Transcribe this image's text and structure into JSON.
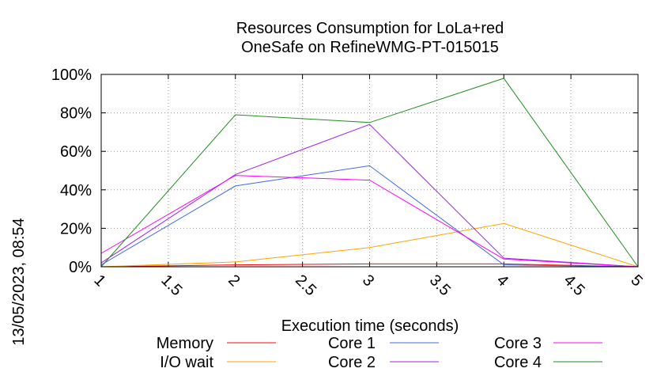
{
  "chart_data": {
    "type": "line",
    "title": "Resources Consumption for LoLa+red",
    "subtitle": "OneSafe on RefineWMG-PT-015015",
    "xlabel": "Execution time (seconds)",
    "ylabel": "",
    "xlim": [
      1,
      5
    ],
    "ylim": [
      0,
      100
    ],
    "x_ticks": [
      "1",
      "1.5",
      "2",
      "2.5",
      "3",
      "3.5",
      "4",
      "4.5",
      "5"
    ],
    "y_ticks": [
      "0%",
      "20%",
      "40%",
      "60%",
      "80%",
      "100%"
    ],
    "grid": true,
    "legend_position": "bottom",
    "side_label": "13/05/2023, 08:54",
    "series": [
      {
        "name": "Memory",
        "color": "#ff0000",
        "x": [
          1,
          2,
          3,
          4,
          5
        ],
        "y": [
          0,
          1,
          1.5,
          1.5,
          0
        ]
      },
      {
        "name": "I/O wait",
        "color": "#ffa500",
        "x": [
          1,
          2,
          3,
          4,
          5
        ],
        "y": [
          0,
          2.5,
          10,
          22.5,
          0
        ]
      },
      {
        "name": "Core 1",
        "color": "#4169e1",
        "x": [
          1,
          2,
          3,
          4,
          5
        ],
        "y": [
          1,
          42,
          52.5,
          1,
          0
        ]
      },
      {
        "name": "Core 2",
        "color": "#a020f0",
        "x": [
          1,
          2,
          3,
          4,
          5
        ],
        "y": [
          2,
          48,
          74,
          4.5,
          0
        ]
      },
      {
        "name": "Core 3",
        "color": "#ff00ff",
        "x": [
          1,
          2,
          3,
          4,
          5
        ],
        "y": [
          7,
          47.5,
          45,
          4,
          0
        ]
      },
      {
        "name": "Core 4",
        "color": "#228b22",
        "x": [
          1,
          2,
          3,
          4,
          5
        ],
        "y": [
          0,
          79,
          75,
          98,
          0
        ]
      }
    ]
  }
}
